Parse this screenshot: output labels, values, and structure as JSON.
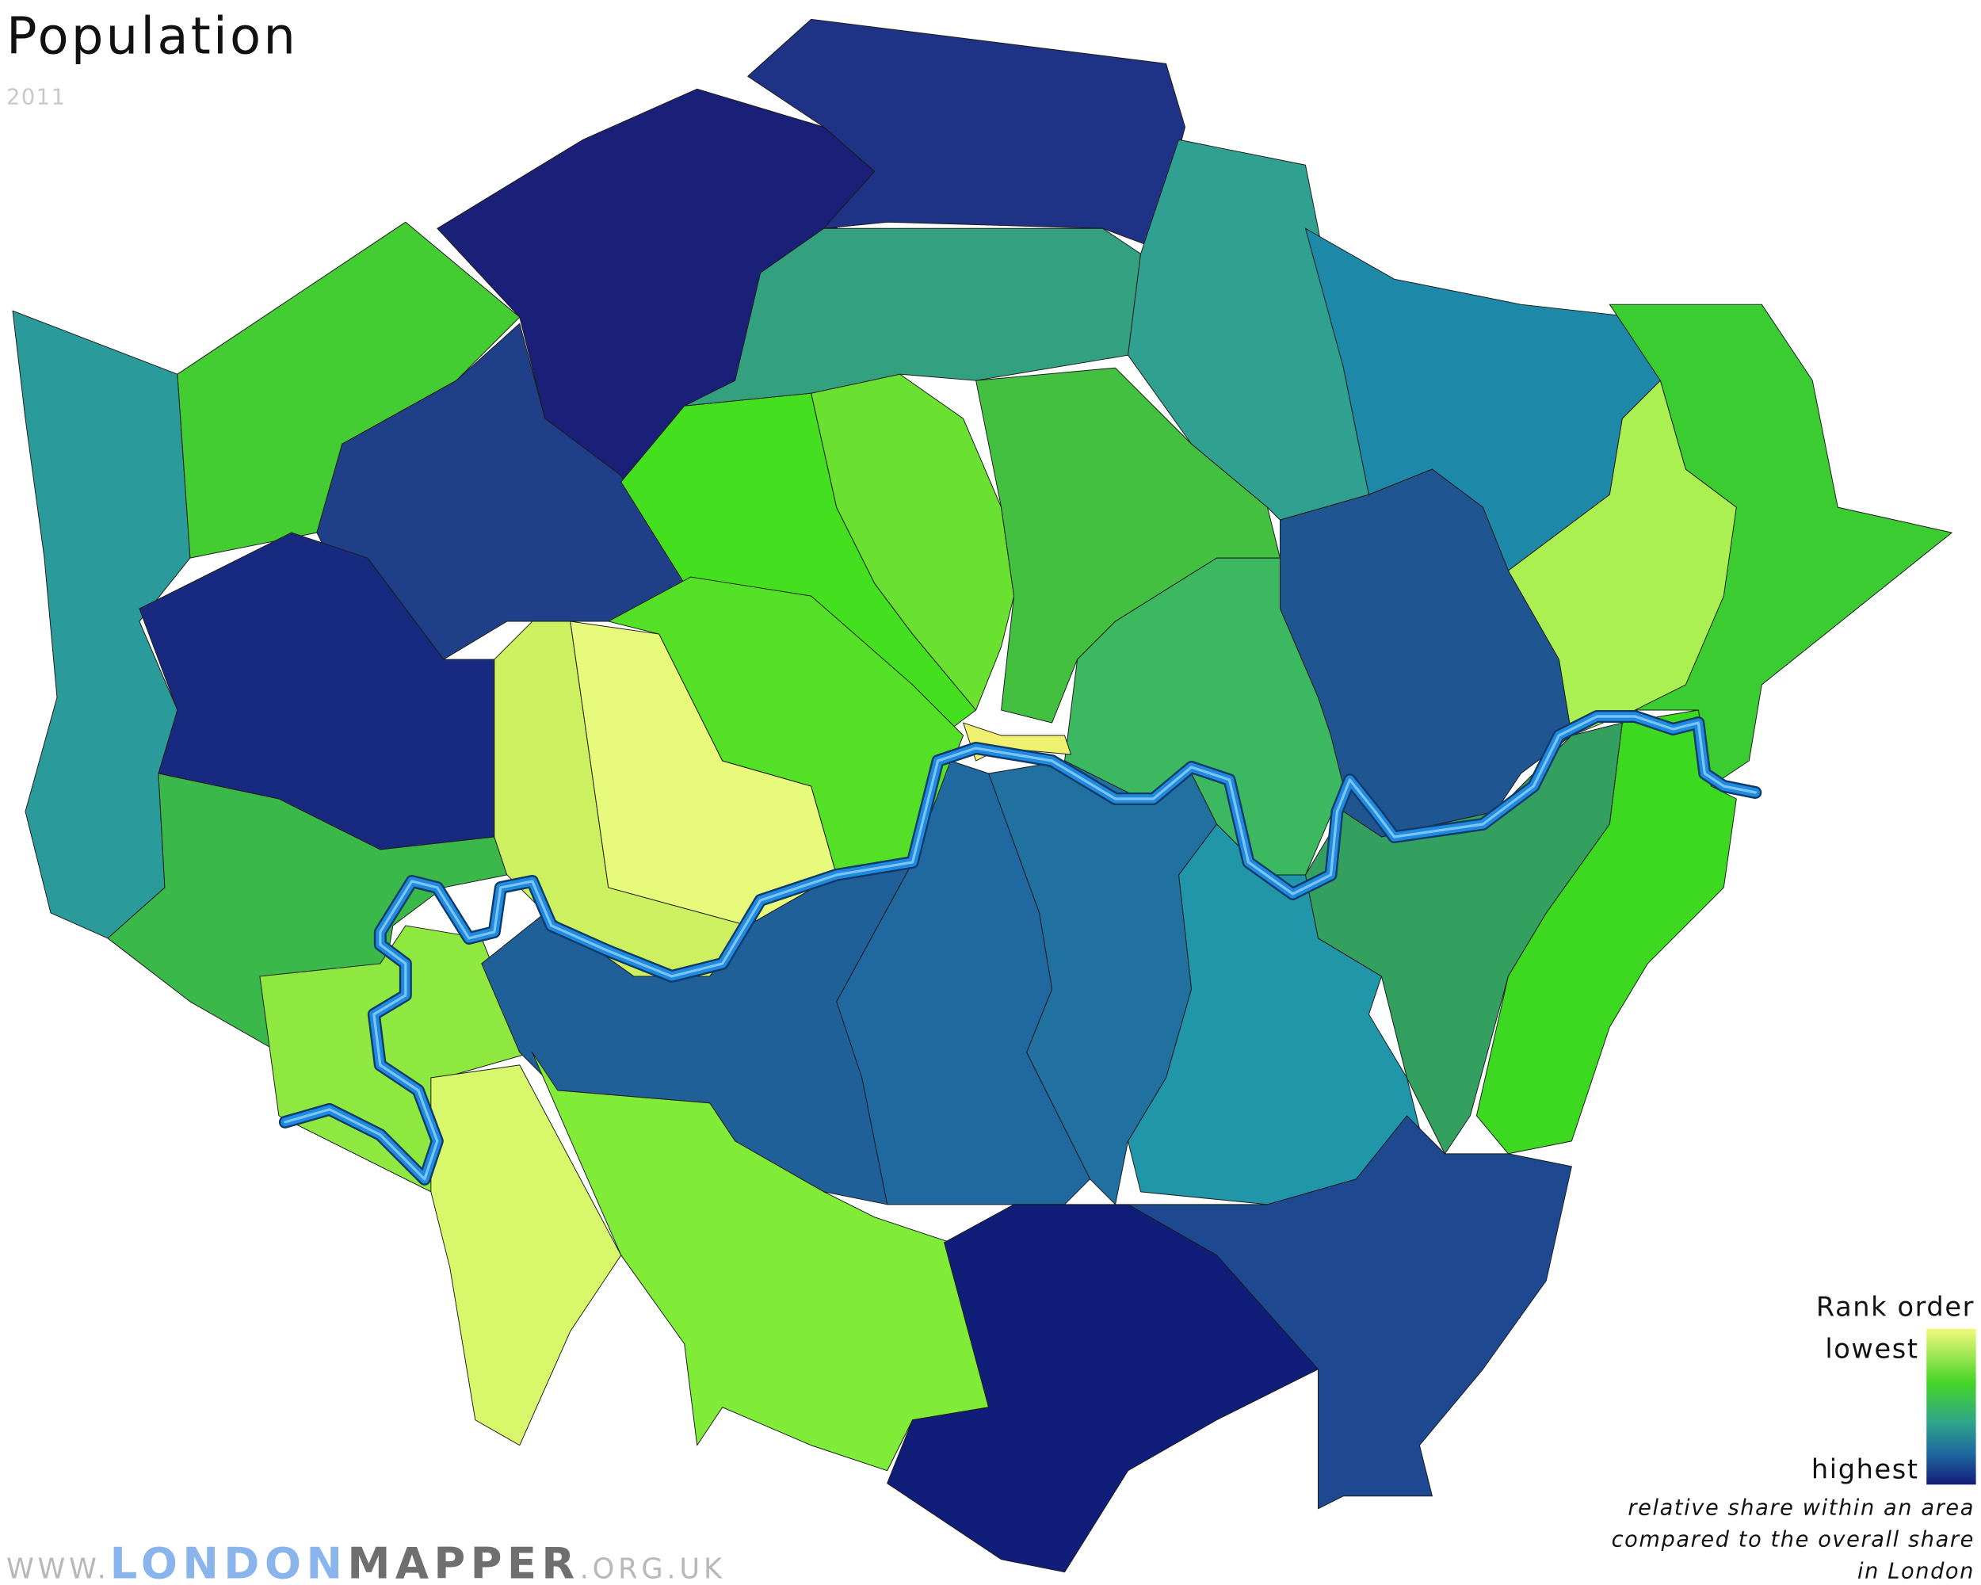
{
  "header": {
    "title": "Population",
    "subtitle": "2011"
  },
  "legend": {
    "title": "Rank order",
    "low": "lowest",
    "high": "highest",
    "note": [
      "relative share within an area",
      "compared to the overall share",
      "in London"
    ]
  },
  "footer": {
    "prefix": "WWW.",
    "brand_a": "LONDON",
    "brand_b": "MAPPER",
    "suffix": ".ORG.UK"
  }
}
